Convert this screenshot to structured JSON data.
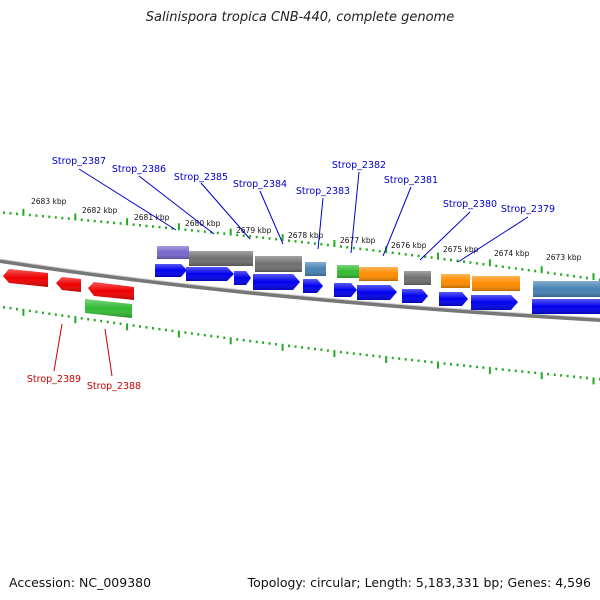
{
  "title": "Salinispora tropica CNB-440, complete genome",
  "footer": {
    "accession": "Accession: NC_009380",
    "topology": "Topology: circular; Length: 5,183,331 bp; Genes: 4,596"
  },
  "colors": {
    "cds": "#0000ee",
    "cds_reverse": "#ee0000",
    "rna": "#33cc33",
    "tick": "#22aa22",
    "label_forward": "#0000cc",
    "label_reverse": "#cc0000",
    "cog_gray": "#6f6f6f",
    "cog_purple": "#7766cc",
    "cog_steel": "#4682b4",
    "cog_orange": "#ff8c00",
    "cog_green": "#33bb33"
  },
  "scale_labels": [
    "2683 kbp",
    "2682 kbp",
    "2681 kbp",
    "2680 kbp",
    "2679 kbp",
    "2678 kbp",
    "2677 kbp",
    "2676 kbp",
    "2675 kbp",
    "2674 kbp",
    "2673 kbp"
  ],
  "gene_labels_forward": [
    "Strop_2387",
    "Strop_2386",
    "Strop_2385",
    "Strop_2384",
    "Strop_2383",
    "Strop_2382",
    "Strop_2381",
    "Strop_2380",
    "Strop_2379"
  ],
  "gene_labels_reverse": [
    "Strop_2389",
    "Strop_2388"
  ]
}
